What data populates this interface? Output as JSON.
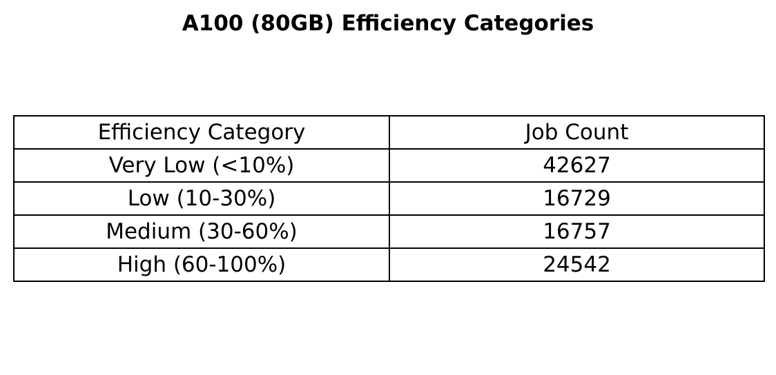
{
  "chart_data": {
    "type": "table",
    "title": "A100 (80GB) Efficiency Categories",
    "columns": [
      "Efficiency Category",
      "Job Count"
    ],
    "rows": [
      [
        "Very Low (<10%)",
        "42627"
      ],
      [
        "Low (10-30%)",
        "16729"
      ],
      [
        "Medium (30-60%)",
        "16757"
      ],
      [
        "High (60-100%)",
        "24542"
      ]
    ],
    "colors": {
      "border": "#000000",
      "background": "#ffffff",
      "text": "#000000"
    }
  }
}
